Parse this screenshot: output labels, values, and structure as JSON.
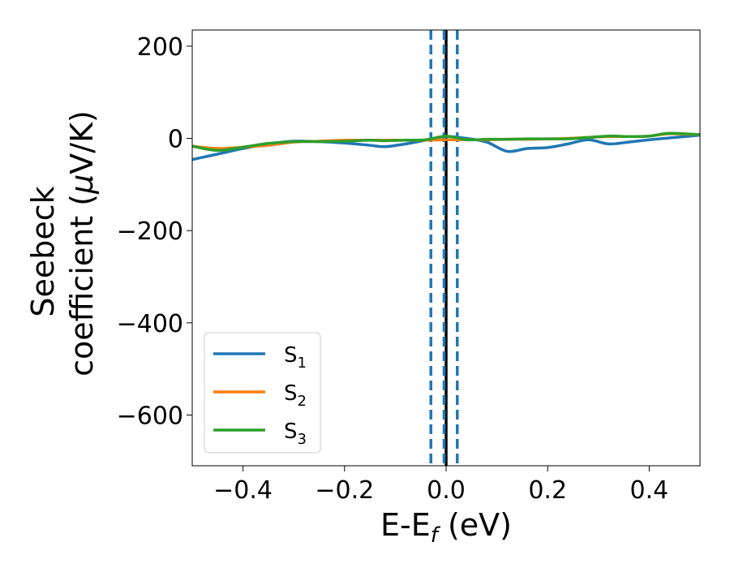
{
  "chart_data": {
    "type": "line",
    "xlabel": "E-E",
    "xlabel_sub": "f",
    "xlabel_unit": " (eV)",
    "ylabel_line1": "Seebeck",
    "ylabel_line2": "coefficient  (",
    "ylabel_mu": "μ",
    "ylabel_unit": "V/K)",
    "xlim": [
      -0.5,
      0.5
    ],
    "ylim": [
      -710,
      235
    ],
    "xticks": [
      -0.4,
      -0.2,
      0.0,
      0.2,
      0.4
    ],
    "xtick_labels": [
      "−0.4",
      "−0.2",
      "0.0",
      "0.2",
      "0.4"
    ],
    "yticks": [
      200,
      0,
      -200,
      -400,
      -600
    ],
    "ytick_labels": [
      "200",
      "0",
      "−200",
      "−400",
      "−600"
    ],
    "grid": false,
    "legend_position": "lower-left",
    "vlines": [
      {
        "x": 0.0,
        "color": "#000000",
        "style": "solid"
      },
      {
        "x": -0.03,
        "color": "#1f77b4",
        "style": "dashed"
      },
      {
        "x": -0.004,
        "color": "#1f77b4",
        "style": "dashed"
      },
      {
        "x": 0.022,
        "color": "#1f77b4",
        "style": "dashed"
      }
    ],
    "x": [
      -0.5,
      -0.45,
      -0.4,
      -0.35,
      -0.3,
      -0.25,
      -0.2,
      -0.15,
      -0.12,
      -0.08,
      -0.04,
      0.0,
      0.04,
      0.08,
      0.12,
      0.16,
      0.2,
      0.24,
      0.28,
      0.32,
      0.36,
      0.4,
      0.44,
      0.5
    ],
    "series": [
      {
        "name": "S",
        "sub": "1",
        "color": "#1f77b4",
        "values": [
          -46,
          -34,
          -22,
          -12,
          -6,
          -7,
          -10,
          -15,
          -18,
          -12,
          -4,
          4,
          0,
          -8,
          -28,
          -22,
          -20,
          -12,
          -3,
          -12,
          -8,
          -3,
          1,
          7
        ]
      },
      {
        "name": "S",
        "sub": "2",
        "color": "#ff7f0e",
        "values": [
          -17,
          -22,
          -19,
          -15,
          -8,
          -6,
          -4,
          -4,
          -4,
          -4,
          -4,
          -3,
          -3,
          -3,
          -2,
          -2,
          -1,
          0,
          2,
          4,
          4,
          5,
          10,
          8
        ]
      },
      {
        "name": "S",
        "sub": "3",
        "color": "#2ca02c",
        "values": [
          -17,
          -26,
          -19,
          -11,
          -7,
          -7,
          -6,
          -4,
          -5,
          -4,
          -3,
          5,
          -3,
          -2,
          -2,
          -1,
          -1,
          -1,
          2,
          5,
          4,
          5,
          11,
          8
        ]
      }
    ]
  }
}
